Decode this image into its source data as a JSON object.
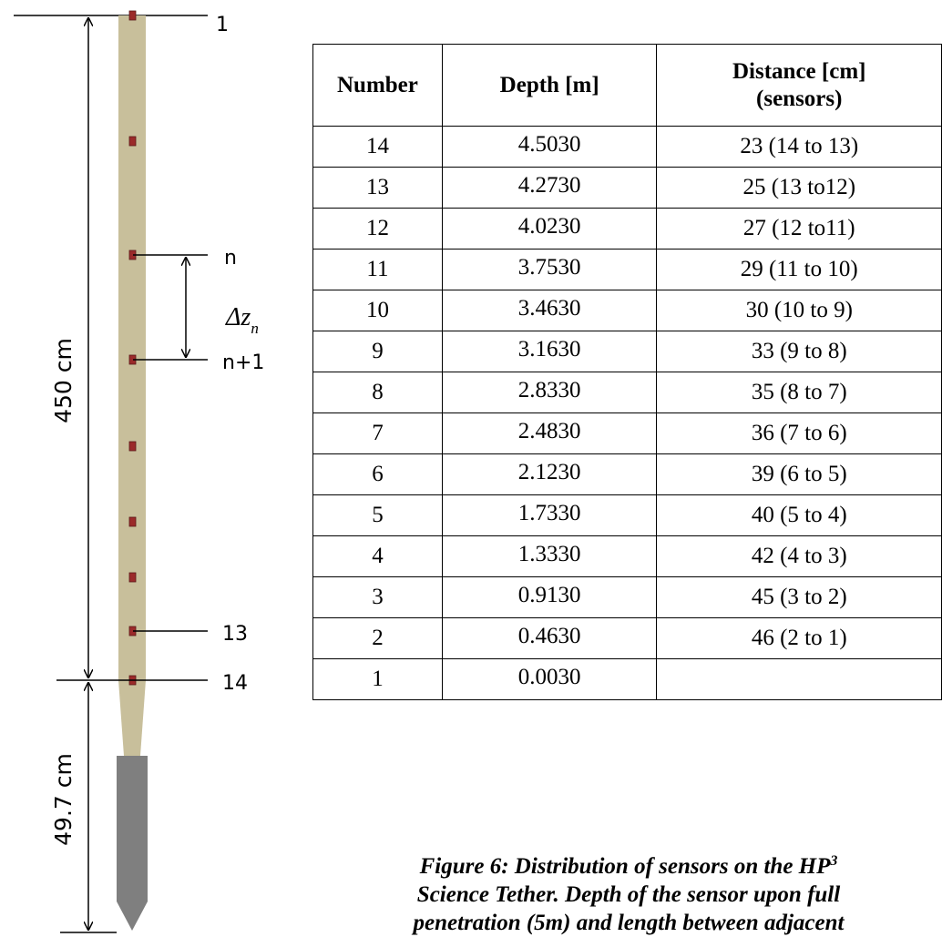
{
  "diagram": {
    "top_label": "1",
    "n_label": "n",
    "n1_label": "n+1",
    "label_13": "13",
    "label_14": "14",
    "dim_upper": "450 cm",
    "dim_lower": "49.7 cm",
    "delta_symbol": "Δz",
    "delta_subscript": "n",
    "colors": {
      "tether": "#c8bf9b",
      "tip": "#7f7f7f",
      "sensor": "#9b2a2a"
    },
    "sensor_count": 10
  },
  "table": {
    "headers": [
      "Number",
      "Depth [m]",
      "Distance [cm]",
      "(sensors)"
    ],
    "rows": [
      {
        "number": "14",
        "depth": "4.5030",
        "distance": "23 (14 to 13)"
      },
      {
        "number": "13",
        "depth": "4.2730",
        "distance": "25 (13 to12)"
      },
      {
        "number": "12",
        "depth": "4.0230",
        "distance": "27 (12 to11)"
      },
      {
        "number": "11",
        "depth": "3.7530",
        "distance": "29 (11 to 10)"
      },
      {
        "number": "10",
        "depth": "3.4630",
        "distance": "30 (10 to 9)"
      },
      {
        "number": "9",
        "depth": "3.1630",
        "distance": "33 (9 to 8)"
      },
      {
        "number": "8",
        "depth": "2.8330",
        "distance": "35 (8 to 7)"
      },
      {
        "number": "7",
        "depth": "2.4830",
        "distance": "36 (7 to 6)"
      },
      {
        "number": "6",
        "depth": "2.1230",
        "distance": "39 (6 to 5)"
      },
      {
        "number": "5",
        "depth": "1.7330",
        "distance": "40 (5 to 4)"
      },
      {
        "number": "4",
        "depth": "1.3330",
        "distance": "42 (4 to 3)"
      },
      {
        "number": "3",
        "depth": "0.9130",
        "distance": "45 (3 to 2)"
      },
      {
        "number": "2",
        "depth": "0.4630",
        "distance": "46 (2 to 1)"
      },
      {
        "number": "1",
        "depth": "0.0030",
        "distance": ""
      }
    ]
  },
  "caption": {
    "line1_pre": "Figure 6: Distribution of sensors on the HP",
    "line1_sup": "3",
    "line2": "Science Tether. Depth of the sensor upon full",
    "line3": "penetration (5m) and length between adjacent"
  }
}
